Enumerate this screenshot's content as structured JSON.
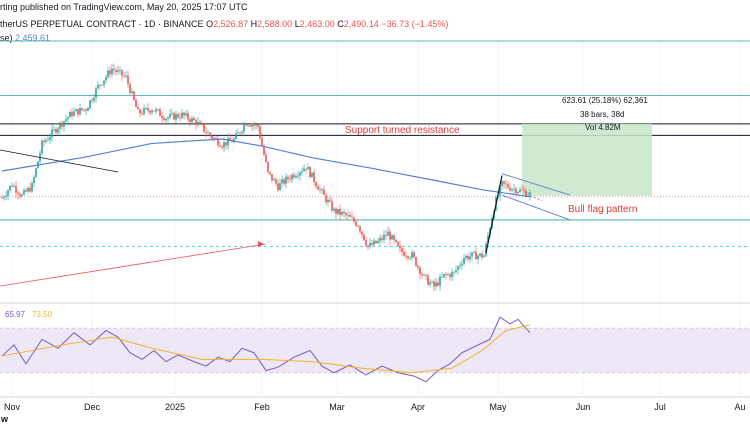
{
  "header": {
    "published": "rting published on TradingView.com, May 20, 2025 17:07 UTC",
    "symbol": "therUS PERPETUAL CONTRACT · 1D · BINANCE",
    "ohlc": {
      "o_label": "O",
      "o": "2,526.87",
      "h_label": "H",
      "h": "2,588.00",
      "l_label": "L",
      "l": "2,463.00",
      "c_label": "C",
      "c": "2,490.14",
      "change": "−36.73 (−1.45%)"
    },
    "ma_label": "se)",
    "ma_value": "2,459.61"
  },
  "annotations": {
    "support_text": "Support turned resistance",
    "flag_text": "Bull flag pattern",
    "measure_line1": "623.61 (25.18%) 62,361",
    "measure_line2": "38 bars, 38d",
    "measure_line3": "Vol 4.82M"
  },
  "rsi": {
    "value1": "65.97",
    "value2": "73.50"
  },
  "footer": {
    "logo_fragment": "w"
  },
  "colors": {
    "up": "#26a69a",
    "down": "#ef5350",
    "ma": "#5b7fd6",
    "rsi_line": "#7e57c2",
    "rsi_ma": "#f0b429",
    "rsi_band": "#ede7f6",
    "support_text": "#e53935",
    "measure_box": "#c8e6c9"
  },
  "chart_data": {
    "type": "candlestick",
    "x_ticks": [
      "Nov",
      "Dec",
      "2025",
      "Feb",
      "Mar",
      "Apr",
      "May",
      "Jun",
      "Jul",
      "Au"
    ],
    "price_series": [
      {
        "t": 0,
        "close": 2450
      },
      {
        "t": 5,
        "close": 2600
      },
      {
        "t": 10,
        "close": 2470
      },
      {
        "t": 15,
        "close": 2580
      },
      {
        "t": 20,
        "close": 3050
      },
      {
        "t": 28,
        "close": 3250
      },
      {
        "t": 35,
        "close": 3400
      },
      {
        "t": 42,
        "close": 3450
      },
      {
        "t": 48,
        "close": 3700
      },
      {
        "t": 55,
        "close": 3900
      },
      {
        "t": 62,
        "close": 3800
      },
      {
        "t": 68,
        "close": 3400
      },
      {
        "t": 75,
        "close": 3450
      },
      {
        "t": 82,
        "close": 3350
      },
      {
        "t": 90,
        "close": 3380
      },
      {
        "t": 97,
        "close": 3300
      },
      {
        "t": 104,
        "close": 3150
      },
      {
        "t": 110,
        "close": 3050
      },
      {
        "t": 116,
        "close": 3100
      },
      {
        "t": 122,
        "close": 3300
      },
      {
        "t": 128,
        "close": 3250
      },
      {
        "t": 133,
        "close": 2720
      },
      {
        "t": 138,
        "close": 2580
      },
      {
        "t": 145,
        "close": 2700
      },
      {
        "t": 152,
        "close": 2800
      },
      {
        "t": 160,
        "close": 2500
      },
      {
        "t": 166,
        "close": 2300
      },
      {
        "t": 172,
        "close": 2250
      },
      {
        "t": 178,
        "close": 2150
      },
      {
        "t": 183,
        "close": 1900
      },
      {
        "t": 188,
        "close": 1950
      },
      {
        "t": 193,
        "close": 2050
      },
      {
        "t": 199,
        "close": 1850
      },
      {
        "t": 205,
        "close": 1800
      },
      {
        "t": 211,
        "close": 1550
      },
      {
        "t": 216,
        "close": 1450
      },
      {
        "t": 221,
        "close": 1570
      },
      {
        "t": 226,
        "close": 1600
      },
      {
        "t": 231,
        "close": 1780
      },
      {
        "t": 236,
        "close": 1800
      },
      {
        "t": 241,
        "close": 1800
      },
      {
        "t": 246,
        "close": 2350
      },
      {
        "t": 250,
        "close": 2600
      },
      {
        "t": 255,
        "close": 2560
      },
      {
        "t": 260,
        "close": 2520
      },
      {
        "t": 264,
        "close": 2490
      }
    ],
    "ma_series": [
      {
        "t": 0,
        "v": 2750
      },
      {
        "t": 40,
        "v": 2900
      },
      {
        "t": 75,
        "v": 3060
      },
      {
        "t": 110,
        "v": 3110
      },
      {
        "t": 130,
        "v": 3030
      },
      {
        "t": 155,
        "v": 2900
      },
      {
        "t": 185,
        "v": 2780
      },
      {
        "t": 215,
        "v": 2650
      },
      {
        "t": 240,
        "v": 2540
      },
      {
        "t": 264,
        "v": 2460
      }
    ],
    "rsi_series": [
      {
        "t": 0,
        "v": 45
      },
      {
        "t": 6,
        "v": 55
      },
      {
        "t": 12,
        "v": 38
      },
      {
        "t": 20,
        "v": 60
      },
      {
        "t": 28,
        "v": 52
      },
      {
        "t": 36,
        "v": 66
      },
      {
        "t": 44,
        "v": 55
      },
      {
        "t": 52,
        "v": 68
      },
      {
        "t": 58,
        "v": 62
      },
      {
        "t": 64,
        "v": 48
      },
      {
        "t": 70,
        "v": 42
      },
      {
        "t": 76,
        "v": 50
      },
      {
        "t": 82,
        "v": 40
      },
      {
        "t": 88,
        "v": 46
      },
      {
        "t": 96,
        "v": 40
      },
      {
        "t": 102,
        "v": 36
      },
      {
        "t": 108,
        "v": 44
      },
      {
        "t": 114,
        "v": 40
      },
      {
        "t": 120,
        "v": 52
      },
      {
        "t": 126,
        "v": 48
      },
      {
        "t": 132,
        "v": 32
      },
      {
        "t": 138,
        "v": 35
      },
      {
        "t": 146,
        "v": 44
      },
      {
        "t": 154,
        "v": 50
      },
      {
        "t": 160,
        "v": 36
      },
      {
        "t": 166,
        "v": 30
      },
      {
        "t": 174,
        "v": 37
      },
      {
        "t": 182,
        "v": 28
      },
      {
        "t": 190,
        "v": 36
      },
      {
        "t": 198,
        "v": 30
      },
      {
        "t": 206,
        "v": 27
      },
      {
        "t": 212,
        "v": 22
      },
      {
        "t": 218,
        "v": 32
      },
      {
        "t": 224,
        "v": 38
      },
      {
        "t": 230,
        "v": 48
      },
      {
        "t": 238,
        "v": 55
      },
      {
        "t": 244,
        "v": 60
      },
      {
        "t": 249,
        "v": 80
      },
      {
        "t": 254,
        "v": 74
      },
      {
        "t": 258,
        "v": 78
      },
      {
        "t": 264,
        "v": 66
      }
    ],
    "rsi_ma_series": [
      {
        "t": 0,
        "v": 45
      },
      {
        "t": 30,
        "v": 55
      },
      {
        "t": 55,
        "v": 62
      },
      {
        "t": 75,
        "v": 52
      },
      {
        "t": 100,
        "v": 42
      },
      {
        "t": 130,
        "v": 42
      },
      {
        "t": 155,
        "v": 40
      },
      {
        "t": 180,
        "v": 34
      },
      {
        "t": 205,
        "v": 30
      },
      {
        "t": 225,
        "v": 34
      },
      {
        "t": 240,
        "v": 50
      },
      {
        "t": 252,
        "v": 68
      },
      {
        "t": 264,
        "v": 73
      }
    ],
    "price_ylim": [
      1300,
      4200
    ],
    "rsi_ylim": [
      10,
      90
    ],
    "rsi_bands": [
      70,
      30
    ],
    "levels": {
      "resistance_top": 3600,
      "resistance_band_high": 3280,
      "resistance_band_low": 3240,
      "support": 2200,
      "ma_level": 2460,
      "cyan_level": 1900
    },
    "grid": true,
    "legend": "top-left"
  }
}
